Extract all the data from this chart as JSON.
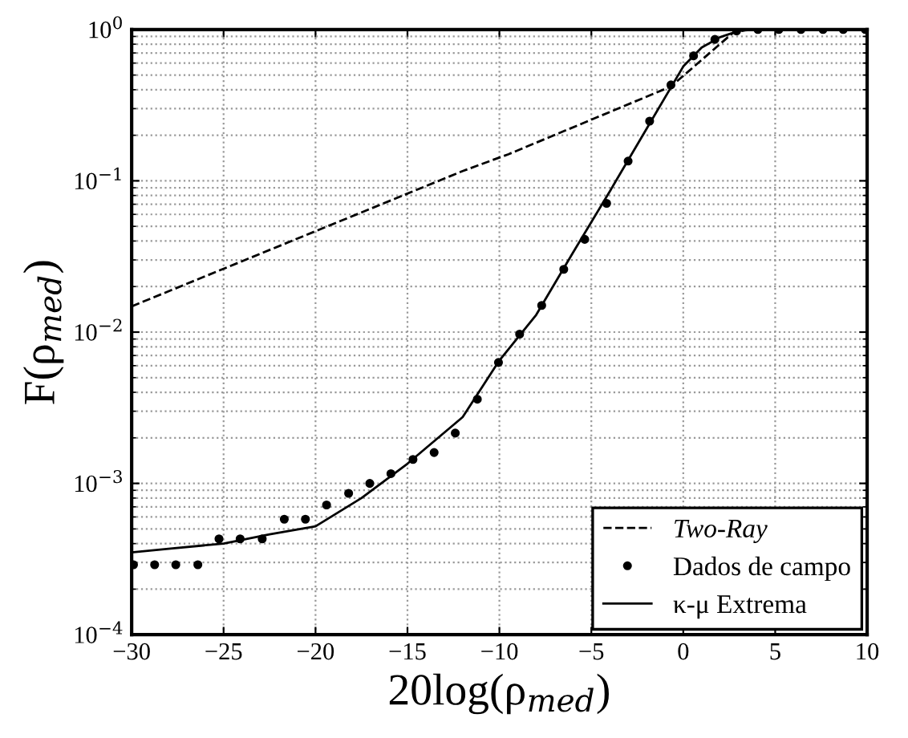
{
  "chart_data": {
    "type": "line",
    "xlabel": "20log(ρ$_{med}$)",
    "ylabel": "F(ρ$_{med}$)",
    "log": "y",
    "grid": true,
    "legend": "bottom right",
    "xlim": [
      -30,
      10
    ],
    "xticks": [
      {
        "value": -30,
        "label": "−30"
      },
      {
        "value": -25,
        "label": "−25"
      },
      {
        "value": -20,
        "label": "−20"
      },
      {
        "value": -15,
        "label": "−15"
      },
      {
        "value": -10,
        "label": "−10"
      },
      {
        "value": -5,
        "label": "−5"
      },
      0,
      5,
      10
    ],
    "ylim": [
      0.0001,
      1
    ],
    "yticks": [
      {
        "value": 0.0001,
        "label": "10$^{−4}$"
      },
      {
        "value": 0.001,
        "label": "10$^{−3}$"
      },
      {
        "value": 0.01,
        "label": "10$^{−2}$"
      },
      {
        "value": 0.1,
        "label": "10$^{−1}$"
      },
      {
        "value": 1,
        "label": "10$^{0}$"
      }
    ],
    "series": [
      {
        "name": "Two-Ray",
        "line_style": "dashed",
        "color": "#000000",
        "x": [
          -30,
          -12,
          -9.5,
          -0.67,
          2.7,
          3.5,
          10
        ],
        "values": [
          0.0148,
          0.116,
          0.15,
          0.42,
          0.95,
          1.0,
          1.0
        ]
      },
      {
        "name": "Dados de campo",
        "type": "scatter",
        "marker": "circle",
        "color": "#000000",
        "x": [
          -29.9,
          -28.75,
          -27.6,
          -26.4,
          -25.25,
          -24.1,
          -22.9,
          -21.7,
          -20.55,
          -19.4,
          -18.2,
          -17.05,
          -15.9,
          -14.7,
          -13.55,
          -12.4,
          -11.2,
          -10.05,
          -8.9,
          -7.7,
          -6.5,
          -5.36,
          -4.17,
          -3.0,
          -1.83,
          -0.67,
          0.56,
          1.72,
          2.9,
          4.06,
          5.2,
          6.4,
          7.6,
          8.7,
          9.9
        ],
        "values": [
          0.00029,
          0.00029,
          0.00029,
          0.00029,
          0.00043,
          0.00043,
          0.00043,
          0.00058,
          0.00058,
          0.00072,
          0.00086,
          0.001,
          0.00116,
          0.00144,
          0.0016,
          0.00215,
          0.0036,
          0.0063,
          0.0097,
          0.015,
          0.026,
          0.041,
          0.071,
          0.135,
          0.248,
          0.43,
          0.67,
          0.86,
          0.98,
          1.0,
          1.0,
          1.0,
          1.0,
          1.0,
          1.0
        ]
      },
      {
        "name": "κ-μ Extrema",
        "line_style": "solid",
        "color": "#000000",
        "x": [
          -30,
          -28,
          -25,
          -22.5,
          -20,
          -17.5,
          -15,
          -12,
          -10,
          -8,
          -6,
          -4,
          -2,
          0,
          1,
          2,
          3,
          4,
          10
        ],
        "values": [
          0.00035,
          0.00037,
          0.0004,
          0.00046,
          0.00052,
          0.0008,
          0.00135,
          0.00274,
          0.0065,
          0.013,
          0.0335,
          0.085,
          0.22,
          0.57,
          0.76,
          0.89,
          0.98,
          1.0,
          1.0
        ]
      }
    ]
  }
}
